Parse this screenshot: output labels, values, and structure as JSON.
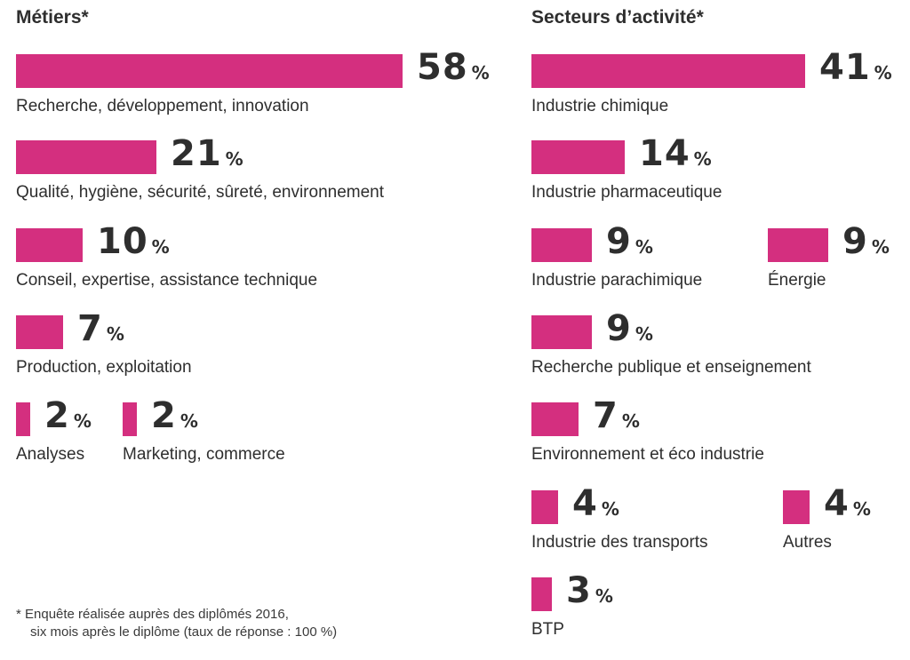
{
  "colors": {
    "bar": "#d42f7f",
    "text": "#2e2e2e"
  },
  "percent_sign": "%",
  "headings": {
    "left": "Métiers*",
    "right": "Secteurs d’activité*"
  },
  "chart_data": [
    {
      "type": "bar",
      "title": "Métiers*",
      "unit": "%",
      "categories": [
        "Recherche, développement, innovation",
        "Qualité, hygiène, sécurité, sûreté, environnement",
        "Conseil, expertise, assistance technique",
        "Production, exploitation",
        "Analyses",
        "Marketing, commerce"
      ],
      "values": [
        58,
        21,
        10,
        7,
        2,
        2
      ]
    },
    {
      "type": "bar",
      "title": "Secteurs d’activité*",
      "unit": "%",
      "categories": [
        "Industrie chimique",
        "Industrie pharmaceutique",
        "Industrie parachimique",
        "Énergie",
        "Recherche publique et enseignement",
        "Environnement et éco industrie",
        "Industrie des transports",
        "Autres",
        "BTP"
      ],
      "values": [
        41,
        14,
        9,
        9,
        9,
        7,
        4,
        4,
        3
      ]
    }
  ],
  "footnote": {
    "line1": "* Enquête réalisée auprès des diplômés 2016,",
    "line2": "six mois après le diplôme (taux de réponse : 100 %)"
  }
}
